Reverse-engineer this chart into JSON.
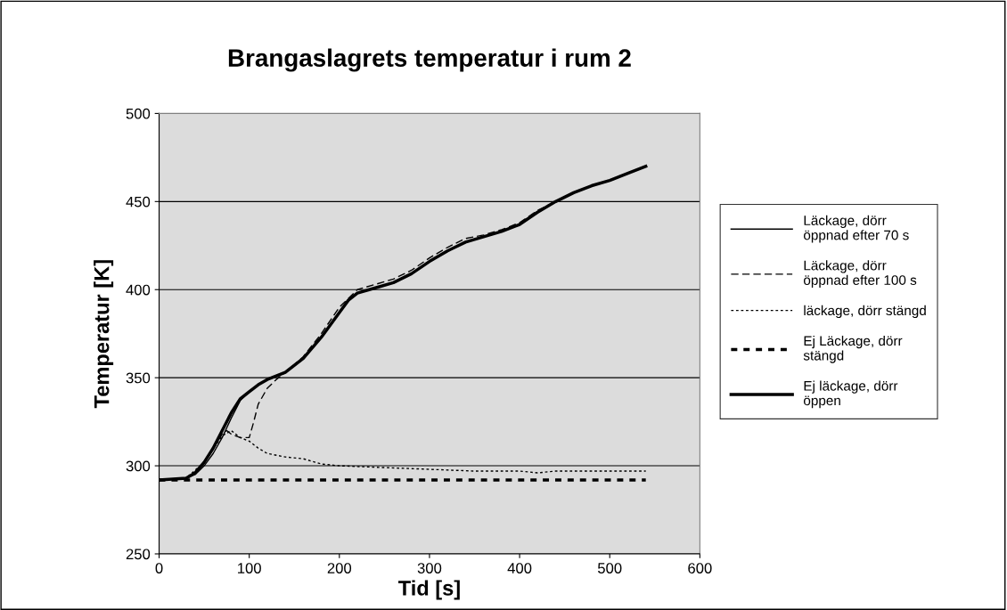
{
  "chart_data": {
    "type": "line",
    "title": "Brangaslagrets temperatur i rum 2",
    "xlabel": "Tid [s]",
    "ylabel": "Temperatur [K]",
    "xlim": [
      0,
      600
    ],
    "xticks": [
      0,
      100,
      200,
      300,
      400,
      500,
      600
    ],
    "ylim": [
      250,
      500
    ],
    "yticks": [
      250,
      300,
      350,
      400,
      450,
      500
    ],
    "grid": "y",
    "legend": "right",
    "marker": "none",
    "series": [
      {
        "name": "Läckage, dörr\nöppnad efter 70 s",
        "color": "#000000",
        "line_style": "solid",
        "x": [
          0,
          30,
          40,
          50,
          60,
          70,
          80,
          90,
          100,
          110,
          120,
          140,
          160,
          180,
          200,
          210,
          220,
          240,
          260,
          280,
          300,
          320,
          340,
          360,
          380,
          400,
          420,
          440,
          460,
          480,
          500,
          520,
          540
        ],
        "values": [
          292,
          293,
          295,
          300,
          307,
          316,
          327,
          337,
          342,
          346,
          349,
          353,
          361,
          373,
          387,
          394,
          398,
          401,
          404,
          409,
          416,
          422,
          427,
          430,
          433,
          437,
          444,
          450,
          455,
          459,
          462,
          466,
          470
        ]
      },
      {
        "name": "Läckage, dörr\nöppnad efter 100 s",
        "color": "#000000",
        "line_style": "dashed",
        "x": [
          0,
          30,
          40,
          50,
          60,
          70,
          75,
          80,
          90,
          100,
          105,
          110,
          120,
          130,
          140,
          160,
          180,
          200,
          220,
          240,
          260,
          280,
          300,
          320,
          340,
          360,
          380,
          400,
          420,
          440,
          460,
          480,
          500,
          520,
          540
        ],
        "values": [
          292,
          293,
          296,
          302,
          310,
          318,
          320,
          318,
          316,
          316,
          325,
          335,
          344,
          349,
          353,
          362,
          375,
          390,
          400,
          403,
          406,
          411,
          418,
          424,
          429,
          431,
          434,
          438,
          445,
          450,
          455,
          459,
          462,
          466,
          470
        ]
      },
      {
        "name": "läckage, dörr stängd",
        "color": "#000000",
        "line_style": "dotted",
        "x": [
          0,
          30,
          50,
          70,
          80,
          90,
          100,
          110,
          120,
          140,
          160,
          180,
          200,
          250,
          300,
          350,
          400,
          420,
          440,
          540
        ],
        "values": [
          292,
          293,
          302,
          317,
          320,
          316,
          314,
          310,
          307,
          305,
          304,
          301,
          300,
          299,
          298,
          297,
          297,
          296,
          297,
          297
        ]
      },
      {
        "name": "Ej Läckage, dörr\nstängd",
        "color": "#000000",
        "line_style": "dotted",
        "x": [
          0,
          540
        ],
        "values": [
          292,
          292
        ]
      },
      {
        "name": "Ej läckage, dörr\nöppen",
        "color": "#000000",
        "line_style": "solid",
        "x": [
          0,
          30,
          40,
          50,
          60,
          70,
          80,
          90,
          100,
          110,
          120,
          140,
          160,
          180,
          200,
          210,
          220,
          240,
          260,
          280,
          300,
          320,
          340,
          360,
          380,
          400,
          420,
          440,
          460,
          480,
          500,
          520,
          540
        ],
        "values": [
          292,
          293,
          296,
          302,
          310,
          320,
          330,
          338,
          342,
          346,
          349,
          353,
          361,
          373,
          387,
          394,
          398,
          401,
          404,
          409,
          416,
          422,
          427,
          430,
          433,
          437,
          444,
          450,
          455,
          459,
          462,
          466,
          470
        ]
      }
    ]
  }
}
